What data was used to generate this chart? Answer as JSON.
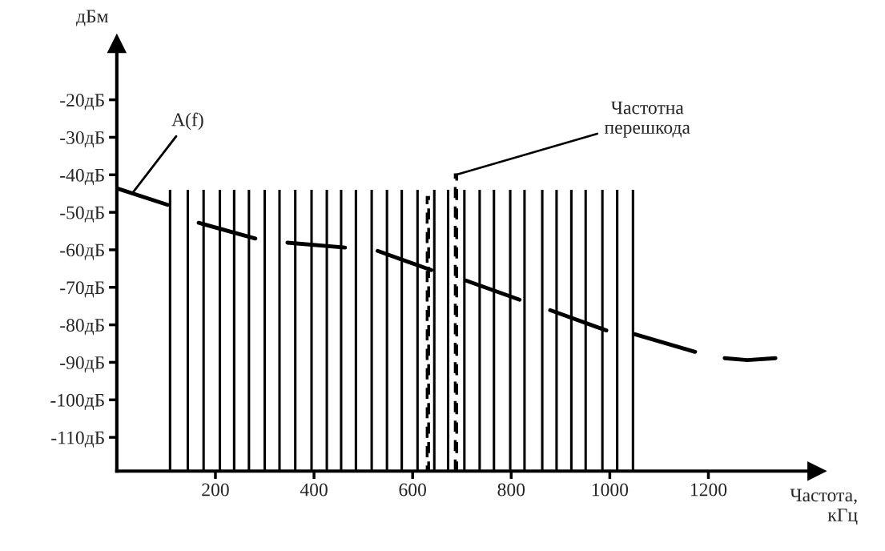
{
  "chart_data": {
    "type": "bar",
    "xlabel": "Частота,\nкГц",
    "ylabel": "дБм",
    "xlim": [
      0,
      1420
    ],
    "ylim": [
      -119,
      -5
    ],
    "xticks": [
      200,
      400,
      600,
      800,
      1000,
      1200
    ],
    "yticks": [
      {
        "value": -20,
        "label": "-20дБ"
      },
      {
        "value": -30,
        "label": "-30дБ"
      },
      {
        "value": -40,
        "label": "-40дБ"
      },
      {
        "value": -50,
        "label": "-50дБ"
      },
      {
        "value": -60,
        "label": "-60дБ"
      },
      {
        "value": -70,
        "label": "-70дБ"
      },
      {
        "value": -80,
        "label": "-80дБ"
      },
      {
        "value": -90,
        "label": "-90дБ"
      },
      {
        "value": -100,
        "label": "-100дБ"
      },
      {
        "value": -110,
        "label": "-110дБ"
      }
    ],
    "grid": false,
    "legend": false,
    "series": [
      {
        "color": "#000000",
        "x": [
          108,
          144,
          176,
          209,
          238,
          268,
          300,
          330,
          362,
          395,
          426,
          455,
          485,
          517,
          548,
          578,
          610,
          644,
          672,
          705,
          736,
          765,
          798,
          827,
          863,
          892,
          922,
          951,
          985,
          1015,
          1047
        ],
        "base": [
          -119,
          -119,
          -119,
          -119,
          -119,
          -119,
          -119,
          -119,
          -119,
          -119,
          -119,
          -119,
          -119,
          -119,
          -119,
          -119,
          -119,
          -119,
          -119,
          -119,
          -119,
          -119,
          -119,
          -119,
          -119,
          -119,
          -119,
          -119,
          -119,
          -119,
          -119
        ],
        "values": [
          75,
          75,
          75,
          75,
          75,
          75,
          75,
          75,
          75,
          75,
          75,
          75,
          75,
          75,
          75,
          75,
          75,
          75,
          75,
          75,
          75,
          75,
          75,
          75,
          75,
          75,
          75,
          75,
          75,
          75,
          75
        ]
      },
      {
        "color": "#000000",
        "line_style": "dashed",
        "x": [
          631,
          688
        ],
        "base": [
          -119,
          -119
        ],
        "values": [
          73,
          79
        ]
      },
      {
        "type": "line",
        "color": "#000000",
        "x": [
          0,
          103
        ],
        "values": [
          -43.6,
          -48
        ]
      },
      {
        "type": "line",
        "color": "#000000",
        "x": [
          166,
          281
        ],
        "values": [
          -52.8,
          -57
        ]
      },
      {
        "type": "line",
        "color": "#000000",
        "x": [
          346,
          463
        ],
        "values": [
          -58.1,
          -59.4
        ]
      },
      {
        "type": "line",
        "color": "#000000",
        "x": [
          529,
          638
        ],
        "values": [
          -60.3,
          -65.4
        ]
      },
      {
        "type": "line",
        "color": "#000000",
        "x": [
          708,
          817
        ],
        "values": [
          -68.2,
          -73.3
        ]
      },
      {
        "type": "line",
        "color": "#000000",
        "x": [
          879,
          993
        ],
        "values": [
          -76.1,
          -81.5
        ]
      },
      {
        "type": "line",
        "color": "#000000",
        "x": [
          1051,
          1173
        ],
        "values": [
          -82.5,
          -87.2
        ]
      },
      {
        "type": "line",
        "color": "#000000",
        "x": [
          1233,
          1279,
          1336
        ],
        "values": [
          -88.9,
          -89.4,
          -88.9
        ]
      }
    ],
    "annotations": [
      {
        "text": "A(f)",
        "x": 31,
        "y": -45
      },
      {
        "text": "Частотна\nперешкода",
        "x": 688,
        "y": -40
      }
    ]
  }
}
